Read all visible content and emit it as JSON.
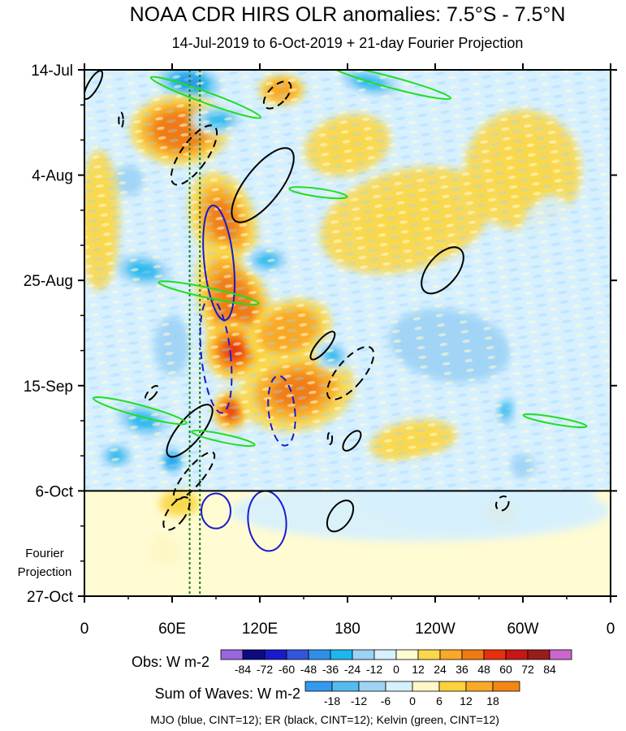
{
  "chart_data": {
    "type": "heatmap",
    "title": "NOAA CDR HIRS OLR anomalies: 7.5°S - 7.5°N",
    "subtitle": "14-Jul-2019 to 6-Oct-2019 + 21-day Fourier Projection",
    "x_ticks": [
      {
        "lon": 0,
        "label": "0"
      },
      {
        "lon": 60,
        "label": "60E"
      },
      {
        "lon": 120,
        "label": "120E"
      },
      {
        "lon": 180,
        "label": "180"
      },
      {
        "lon": 240,
        "label": "120W"
      },
      {
        "lon": 300,
        "label": "60W"
      },
      {
        "lon": 360,
        "label": "0"
      }
    ],
    "y_ticks": [
      {
        "day": 0,
        "label": "14-Jul"
      },
      {
        "day": 21,
        "label": "4-Aug"
      },
      {
        "day": 42,
        "label": "25-Aug"
      },
      {
        "day": 63,
        "label": "15-Sep"
      },
      {
        "day": 84,
        "label": "6-Oct"
      },
      {
        "day": 105,
        "label": "27-Oct"
      }
    ],
    "xlim": [
      0,
      360
    ],
    "ylim_days": [
      0,
      105
    ],
    "observation_end_day": 84,
    "projection_label_line1": "Fourier",
    "projection_label_line2": "Projection",
    "mjo_reference_lons": [
      72,
      79
    ],
    "obs_legend": {
      "label": "Obs: W m-2",
      "levels": [
        "-84",
        "-72",
        "-60",
        "-48",
        "-36",
        "-24",
        "-12",
        "0",
        "12",
        "24",
        "36",
        "48",
        "60",
        "72",
        "84"
      ],
      "colors": [
        "#9966dd",
        "#0c0c80",
        "#1a1acc",
        "#3355dd",
        "#2f8fe8",
        "#1ab8ee",
        "#9cd2f5",
        "#d6f0ff",
        "#fffbd2",
        "#fbd84b",
        "#f9a828",
        "#f07a12",
        "#e8300e",
        "#c81616",
        "#9a1d1d",
        "#cc66cc"
      ]
    },
    "waves_legend": {
      "label": "Sum of Waves: W m-2",
      "levels": [
        "-18",
        "-12",
        "-6",
        "0",
        "6",
        "12",
        "18"
      ],
      "colors": [
        "#3399ee",
        "#55bbee",
        "#9ed4f2",
        "#d6f0ff",
        "#fff6c8",
        "#fcd13c",
        "#f9a828",
        "#f58516"
      ]
    },
    "footer": "MJO (blue, CINT=12); ER (black, CINT=12); Kelvin (green, CINT=12)",
    "anomaly_blobs": [
      {
        "lon": 75,
        "day": 3,
        "rlon": 14,
        "rday": 3.5,
        "v": -60,
        "rot": 10
      },
      {
        "lon": 72,
        "day": 2.5,
        "rlon": 28,
        "rday": 4,
        "v": -40,
        "rot": 10
      },
      {
        "lon": 195,
        "day": 2.5,
        "rlon": 28,
        "rday": 3,
        "v": -36,
        "rot": 12
      },
      {
        "lon": 65,
        "day": 12,
        "rlon": 34,
        "rday": 7,
        "v": 40,
        "rot": 0
      },
      {
        "lon": 92,
        "day": 10,
        "rlon": 20,
        "rday": 3,
        "v": -30,
        "rot": 0
      },
      {
        "lon": 135,
        "day": 4,
        "rlon": 16,
        "rday": 3,
        "v": 30,
        "rot": 0
      },
      {
        "lon": 95,
        "day": 30,
        "rlon": 22,
        "rday": 10,
        "v": 36,
        "rot": -20
      },
      {
        "lon": 104,
        "day": 48,
        "rlon": 24,
        "rday": 14,
        "v": 40,
        "rot": -20
      },
      {
        "lon": 102,
        "day": 56,
        "rlon": 20,
        "rday": 6,
        "v": 52,
        "rot": -20
      },
      {
        "lon": 100,
        "day": 68,
        "rlon": 12,
        "rday": 4,
        "v": 60,
        "rot": 0
      },
      {
        "lon": 145,
        "day": 64,
        "rlon": 40,
        "rday": 8,
        "v": 36,
        "rot": -10
      },
      {
        "lon": 140,
        "day": 52,
        "rlon": 30,
        "rday": 6,
        "v": 28,
        "rot": -20
      },
      {
        "lon": 40,
        "day": 70,
        "rlon": 24,
        "rday": 4,
        "v": -36,
        "rot": 15
      },
      {
        "lon": 22,
        "day": 77,
        "rlon": 14,
        "rday": 3,
        "v": -30,
        "rot": 0
      },
      {
        "lon": 60,
        "day": 78,
        "rlon": 10,
        "rday": 3,
        "v": -54,
        "rot": 0
      },
      {
        "lon": 125,
        "day": 38,
        "rlon": 18,
        "rday": 3,
        "v": -30,
        "rot": 0
      },
      {
        "lon": 40,
        "day": 40,
        "rlon": 26,
        "rday": 4,
        "v": -32,
        "rot": 10
      },
      {
        "lon": 170,
        "day": 57,
        "rlon": 12,
        "rday": 3,
        "v": -36,
        "rot": 0
      },
      {
        "lon": 30,
        "day": 22,
        "rlon": 18,
        "rday": 5,
        "v": -24,
        "rot": 0
      },
      {
        "lon": 288,
        "day": 67,
        "rlon": 8,
        "rday": 6,
        "v": -36,
        "rot": 0
      },
      {
        "lon": 220,
        "day": 30,
        "rlon": 60,
        "rday": 10,
        "v": 14,
        "rot": -15
      },
      {
        "lon": 300,
        "day": 20,
        "rlon": 40,
        "rday": 12,
        "v": 14,
        "rot": 0
      },
      {
        "lon": 250,
        "day": 55,
        "rlon": 70,
        "rday": 12,
        "v": -14,
        "rot": 10
      },
      {
        "lon": 320,
        "day": 45,
        "rlon": 30,
        "rday": 20,
        "v": -12,
        "rot": 0
      },
      {
        "lon": 180,
        "day": 15,
        "rlon": 30,
        "rday": 6,
        "v": 16,
        "rot": -15
      },
      {
        "lon": 60,
        "day": 55,
        "rlon": 20,
        "rday": 10,
        "v": -20,
        "rot": 0
      },
      {
        "lon": 10,
        "day": 30,
        "rlon": 14,
        "rday": 14,
        "v": 14,
        "rot": 0
      },
      {
        "lon": 225,
        "day": 74,
        "rlon": 30,
        "rday": 4,
        "v": 16,
        "rot": -10
      },
      {
        "lon": 270,
        "day": 84,
        "rlon": 80,
        "rday": 8,
        "v": -12,
        "rot": 0
      },
      {
        "lon": 300,
        "day": 79,
        "rlon": 14,
        "rday": 4,
        "v": -24,
        "rot": 0
      },
      {
        "lon": 65,
        "day": 86.5,
        "rlon": 14,
        "rday": 2.5,
        "v": 14,
        "rot": 0
      },
      {
        "lon": 55,
        "day": 96,
        "rlon": 10,
        "rday": 2.5,
        "v": 14,
        "rot": 0
      },
      {
        "lon": 285,
        "day": 88.5,
        "rlon": 12,
        "rday": 2.5,
        "v": 14,
        "rot": 0
      },
      {
        "lon": 150,
        "day": 98,
        "rlon": 140,
        "rday": 8,
        "v": 4,
        "rot": 0
      },
      {
        "lon": 230,
        "day": 88,
        "rlon": 130,
        "rday": 6,
        "v": -4,
        "rot": 0
      }
    ],
    "wave_contours": [
      {
        "wave": "MJO",
        "lon": 92,
        "day": 38.5,
        "rlon": 10,
        "rday": 11.5,
        "rot": -6,
        "sign": "negative"
      },
      {
        "wave": "MJO",
        "lon": 90,
        "day": 57,
        "rlon": 10,
        "rday": 11.5,
        "rot": -6,
        "sign": "negative_dashed"
      },
      {
        "wave": "MJO",
        "lon": 135,
        "day": 68,
        "rlon": 9,
        "rday": 7,
        "rot": -6,
        "sign": "negative_dashed"
      },
      {
        "wave": "MJO",
        "lon": 90,
        "day": 88,
        "rlon": 10,
        "rday": 3.5,
        "rot": 0,
        "sign": "negative"
      },
      {
        "wave": "MJO",
        "lon": 125,
        "day": 90,
        "rlon": 13,
        "rday": 6,
        "rot": -6,
        "sign": "negative"
      },
      {
        "wave": "ER",
        "lon": 6,
        "day": 3,
        "rlon": 3.5,
        "rday": 3.2,
        "rot": 30,
        "sign": "negative"
      },
      {
        "wave": "ER",
        "lon": 132,
        "day": 5,
        "rlon": 6,
        "rday": 3.4,
        "rot": 45,
        "sign": "positive_dashed"
      },
      {
        "wave": "ER",
        "lon": 25,
        "day": 10,
        "rlon": 1.5,
        "rday": 1.5,
        "rot": 0,
        "sign": "positive_dashed"
      },
      {
        "wave": "ER",
        "lon": 75,
        "day": 17,
        "rlon": 9,
        "rday": 7,
        "rot": 35,
        "sign": "positive_dashed"
      },
      {
        "wave": "ER",
        "lon": 122,
        "day": 23,
        "rlon": 12,
        "rday": 9,
        "rot": 38,
        "sign": "negative"
      },
      {
        "wave": "ER",
        "lon": 245,
        "day": 40,
        "rlon": 10,
        "rday": 5.5,
        "rot": 40,
        "sign": "negative"
      },
      {
        "wave": "ER",
        "lon": 163,
        "day": 55,
        "rlon": 4,
        "rday": 3.5,
        "rot": 40,
        "sign": "negative"
      },
      {
        "wave": "ER",
        "lon": 182,
        "day": 60.5,
        "rlon": 9,
        "rday": 6.5,
        "rot": 40,
        "sign": "positive_dashed"
      },
      {
        "wave": "ER",
        "lon": 46,
        "day": 64.5,
        "rlon": 2.5,
        "rday": 1.8,
        "rot": 40,
        "sign": "positive_dashed"
      },
      {
        "wave": "ER",
        "lon": 72,
        "day": 72,
        "rlon": 8,
        "rday": 6.5,
        "rot": 40,
        "sign": "negative"
      },
      {
        "wave": "ER",
        "lon": 75,
        "day": 81,
        "rlon": 6,
        "rday": 6,
        "rot": 40,
        "sign": "positive_dashed"
      },
      {
        "wave": "ER",
        "lon": 183,
        "day": 74,
        "rlon": 4,
        "rday": 2.4,
        "rot": 40,
        "sign": "negative"
      },
      {
        "wave": "ER",
        "lon": 168,
        "day": 73.5,
        "rlon": 1.5,
        "rday": 1.2,
        "rot": 0,
        "sign": "positive_dashed"
      },
      {
        "wave": "ER",
        "lon": 175,
        "day": 89,
        "rlon": 7,
        "rday": 3.5,
        "rot": 35,
        "sign": "negative"
      },
      {
        "wave": "ER",
        "lon": 63,
        "day": 88.5,
        "rlon": 6,
        "rday": 3.8,
        "rot": 35,
        "sign": "positive_dashed"
      },
      {
        "wave": "ER",
        "lon": 286,
        "day": 86.5,
        "rlon": 4,
        "rday": 1.5,
        "rot": 30,
        "sign": "positive_dashed"
      },
      {
        "wave": "Kelvin",
        "lon": 83,
        "day": 5.5,
        "rlon": 40,
        "rday": 1.1,
        "rot": 20,
        "sign": "negative"
      },
      {
        "wave": "Kelvin",
        "lon": 210,
        "day": 2.5,
        "rlon": 42,
        "rday": 1.1,
        "rot": 15,
        "sign": "negative"
      },
      {
        "wave": "Kelvin",
        "lon": 160,
        "day": 24.5,
        "rlon": 20,
        "rday": 0.8,
        "rot": 8,
        "sign": "negative"
      },
      {
        "wave": "Kelvin",
        "lon": 85,
        "day": 44.5,
        "rlon": 35,
        "rday": 1,
        "rot": 12,
        "sign": "negative"
      },
      {
        "wave": "Kelvin",
        "lon": 38,
        "day": 68,
        "rlon": 33,
        "rday": 1.1,
        "rot": 15,
        "sign": "negative"
      },
      {
        "wave": "Kelvin",
        "lon": 95,
        "day": 73.5,
        "rlon": 22,
        "rday": 0.8,
        "rot": 12,
        "sign": "negative"
      },
      {
        "wave": "Kelvin",
        "lon": 322,
        "day": 70,
        "rlon": 22,
        "rday": 0.7,
        "rot": 10,
        "sign": "negative"
      }
    ]
  }
}
